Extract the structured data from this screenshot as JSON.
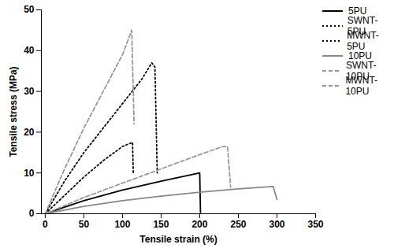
{
  "chart_data": {
    "type": "line",
    "x_label": "Tensile strain (%)",
    "y_label": "Tensile stress (MPa)",
    "xlim": [
      -5,
      350
    ],
    "xticks": [
      0,
      50,
      100,
      150,
      200,
      250,
      300,
      350
    ],
    "ylim": [
      0,
      50
    ],
    "yticks": [
      0,
      10,
      20,
      30,
      40,
      50
    ],
    "grid": false,
    "legend": "right",
    "series": [
      {
        "name": "5PU",
        "color": "#000000",
        "line_style": "solid",
        "x": [
          0,
          25,
          50,
          100,
          150,
          200,
          201
        ],
        "values": [
          0,
          1.6,
          3.2,
          5.8,
          8,
          10,
          0.3
        ]
      },
      {
        "name": "SWNT-5PU",
        "color": "#000000",
        "line_style": "dotted",
        "x": [
          0,
          25,
          50,
          75,
          100,
          125,
          138,
          142,
          145
        ],
        "values": [
          0,
          8,
          15,
          21,
          27,
          33,
          37,
          36,
          10
        ]
      },
      {
        "name": "MWNT-5PU",
        "color": "#000000",
        "line_style": "dotted",
        "x": [
          0,
          25,
          50,
          75,
          100,
          113,
          114
        ],
        "values": [
          0,
          4.5,
          9,
          13,
          16.5,
          17.5,
          10
        ]
      },
      {
        "name": "10PU",
        "color": "#888888",
        "line_style": "solid",
        "x": [
          0,
          50,
          100,
          150,
          200,
          250,
          295,
          300
        ],
        "values": [
          0,
          1.8,
          3.2,
          4.3,
          5.3,
          6.1,
          6.7,
          3.5
        ]
      },
      {
        "name": "SWNT-10PU",
        "color": "#999999",
        "line_style": "dashed",
        "x": [
          0,
          25,
          50,
          75,
          100,
          112,
          115
        ],
        "values": [
          0,
          11,
          21,
          30,
          39,
          45,
          22
        ]
      },
      {
        "name": "MWNT-10PU",
        "color": "#999999",
        "line_style": "dashed",
        "x": [
          0,
          50,
          100,
          150,
          200,
          230,
          236,
          240
        ],
        "values": [
          0,
          4,
          7.5,
          11,
          14.5,
          16.5,
          16.5,
          6.5
        ]
      }
    ]
  }
}
